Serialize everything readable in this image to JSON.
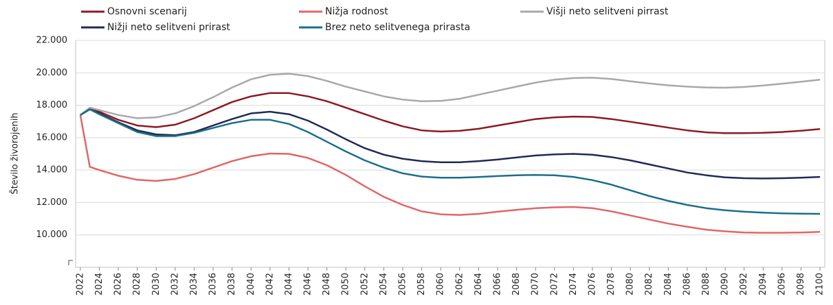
{
  "chart_data": {
    "type": "line",
    "y_label": "Število živorojenih",
    "x": [
      2022,
      2023,
      2024,
      2026,
      2028,
      2030,
      2032,
      2034,
      2036,
      2038,
      2040,
      2042,
      2044,
      2046,
      2048,
      2050,
      2052,
      2054,
      2056,
      2058,
      2060,
      2062,
      2064,
      2066,
      2068,
      2070,
      2072,
      2074,
      2076,
      2078,
      2080,
      2082,
      2084,
      2086,
      2088,
      2090,
      2092,
      2094,
      2096,
      2098,
      2100
    ],
    "series": [
      {
        "name": "Osnovni scenarij",
        "color": "#8b1a22",
        "values": [
          17400,
          17750,
          17600,
          17100,
          16750,
          16650,
          16800,
          17200,
          17700,
          18200,
          18550,
          18750,
          18750,
          18550,
          18250,
          17850,
          17450,
          17050,
          16700,
          16450,
          16380,
          16420,
          16550,
          16750,
          16950,
          17150,
          17250,
          17300,
          17280,
          17150,
          16980,
          16800,
          16620,
          16450,
          16330,
          16280,
          16280,
          16300,
          16350,
          16430,
          16530
        ]
      },
      {
        "name": "Nižja rodnost",
        "color": "#e06666",
        "values": [
          17400,
          14200,
          14000,
          13650,
          13400,
          13330,
          13450,
          13750,
          14150,
          14550,
          14850,
          15020,
          15000,
          14750,
          14300,
          13700,
          13000,
          12350,
          11850,
          11450,
          11270,
          11230,
          11300,
          11430,
          11550,
          11650,
          11700,
          11720,
          11650,
          11450,
          11200,
          10950,
          10700,
          10500,
          10320,
          10220,
          10150,
          10130,
          10130,
          10150,
          10190
        ]
      },
      {
        "name": "Višji neto selitveni pirrast",
        "color": "#a6a8ab",
        "values": [
          17400,
          17850,
          17700,
          17400,
          17200,
          17250,
          17500,
          17950,
          18500,
          19100,
          19600,
          19880,
          19950,
          19800,
          19500,
          19150,
          18850,
          18550,
          18350,
          18250,
          18270,
          18400,
          18650,
          18900,
          19150,
          19400,
          19580,
          19680,
          19700,
          19620,
          19480,
          19350,
          19230,
          19150,
          19100,
          19080,
          19130,
          19220,
          19330,
          19450,
          19580
        ]
      },
      {
        "name": "Nižji neto selitveni prirast",
        "color": "#1f2a55",
        "values": [
          17400,
          17750,
          17500,
          16950,
          16450,
          16200,
          16150,
          16350,
          16750,
          17150,
          17500,
          17600,
          17450,
          17050,
          16500,
          15900,
          15350,
          14950,
          14700,
          14550,
          14480,
          14480,
          14550,
          14650,
          14780,
          14900,
          14970,
          15000,
          14950,
          14800,
          14600,
          14350,
          14100,
          13850,
          13680,
          13550,
          13500,
          13480,
          13500,
          13530,
          13580
        ]
      },
      {
        "name": "Brez neto selitvenega prirasta",
        "color": "#1a6e8a",
        "values": [
          17400,
          17750,
          17450,
          16900,
          16350,
          16100,
          16100,
          16300,
          16600,
          16900,
          17100,
          17100,
          16850,
          16350,
          15750,
          15150,
          14600,
          14150,
          13800,
          13600,
          13530,
          13530,
          13570,
          13630,
          13680,
          13700,
          13680,
          13580,
          13380,
          13100,
          12750,
          12400,
          12100,
          11850,
          11650,
          11520,
          11430,
          11370,
          11330,
          11310,
          11300
        ]
      }
    ],
    "xlim": [
      2021.5,
      2100.5
    ],
    "xticks": [
      2022,
      2024,
      2026,
      2028,
      2030,
      2032,
      2034,
      2036,
      2038,
      2040,
      2042,
      2044,
      2046,
      2048,
      2050,
      2052,
      2054,
      2056,
      2058,
      2060,
      2062,
      2064,
      2066,
      2068,
      2070,
      2072,
      2074,
      2076,
      2078,
      2080,
      2082,
      2084,
      2086,
      2088,
      2090,
      2092,
      2094,
      2096,
      2098,
      2100
    ],
    "ylim": [
      8000,
      22000
    ],
    "yticks": [
      {
        "value": 10000,
        "label": "10.000"
      },
      {
        "value": 12000,
        "label": "12.000"
      },
      {
        "value": 14000,
        "label": "14.000"
      },
      {
        "value": 16000,
        "label": "16.000"
      },
      {
        "value": 18000,
        "label": "18.000"
      },
      {
        "value": 20000,
        "label": "20.000"
      },
      {
        "value": 22000,
        "label": "22.000"
      }
    ],
    "grid": true,
    "legend": "top"
  }
}
